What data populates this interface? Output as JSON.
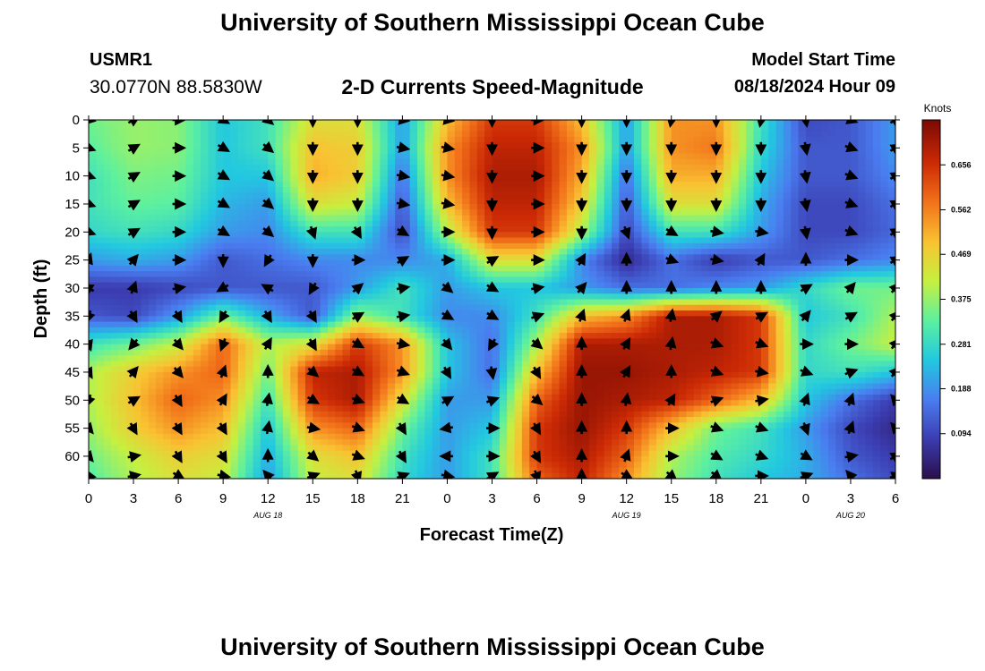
{
  "page": {
    "title_top": "University of Southern Mississippi Ocean Cube",
    "title_bottom": "University of Southern Mississippi Ocean Cube",
    "station_id": "USMR1",
    "coordinates": "30.0770N  88.5830W",
    "subtitle": "2-D Currents Speed-Magnitude",
    "model_start_label": "Model Start Time",
    "model_start_value": "08/18/2024 Hour 09"
  },
  "colors": {
    "ramp": [
      "#2a0f4a",
      "#3b3cb0",
      "#4a7df0",
      "#22c8e0",
      "#5cf0a0",
      "#c6f040",
      "#f9c232",
      "#f2721a",
      "#cc2a05",
      "#7a0a04"
    ],
    "arrow": "#000000"
  },
  "chart_data": {
    "type": "heatmap",
    "title": "2-D Currents Speed-Magnitude",
    "xlabel": "Forecast Time(Z)",
    "ylabel": "Depth (ft)",
    "x_range": [
      0,
      54
    ],
    "x_step_hours": 3,
    "x_tick_labels": [
      "0",
      "3",
      "6",
      "9",
      "12",
      "15",
      "18",
      "21",
      "0",
      "3",
      "6",
      "9",
      "12",
      "15",
      "18",
      "21",
      "0",
      "3",
      "6"
    ],
    "date_labels": [
      {
        "text": "AUG 18",
        "hour": 12
      },
      {
        "text": "AUG 19",
        "hour": 36
      },
      {
        "text": "AUG 20",
        "hour": 51
      }
    ],
    "y_range": [
      0,
      64
    ],
    "y_ticks": [
      0,
      5,
      10,
      15,
      20,
      25,
      30,
      35,
      40,
      45,
      50,
      55,
      60
    ],
    "y_tick_labels": [
      "0",
      "5",
      "10",
      "15",
      "20",
      "25",
      "30",
      "35",
      "40",
      "45",
      "50",
      "55",
      "60"
    ],
    "colorbar": {
      "label": "Knots",
      "range": [
        0.0,
        0.75
      ],
      "ticks": [
        0.656,
        0.562,
        0.469,
        0.375,
        0.281,
        0.188,
        0.094
      ],
      "tick_labels": [
        "0.656",
        "0.562",
        "0.469",
        "0.375",
        "0.281",
        "0.188",
        "0.094"
      ]
    },
    "grid": false,
    "depths": [
      0,
      5,
      10,
      15,
      20,
      25,
      30,
      35,
      40,
      45,
      50,
      55,
      60,
      64
    ],
    "hours": [
      0,
      3,
      6,
      9,
      12,
      15,
      18,
      21,
      24,
      27,
      30,
      33,
      36,
      39,
      42,
      45,
      48,
      51,
      54
    ],
    "speed_knots": [
      [
        0.35,
        0.38,
        0.37,
        0.25,
        0.3,
        0.45,
        0.45,
        0.2,
        0.5,
        0.65,
        0.65,
        0.5,
        0.2,
        0.55,
        0.55,
        0.3,
        0.1,
        0.12,
        0.2
      ],
      [
        0.33,
        0.38,
        0.37,
        0.25,
        0.3,
        0.5,
        0.48,
        0.2,
        0.55,
        0.68,
        0.68,
        0.55,
        0.2,
        0.55,
        0.58,
        0.28,
        0.12,
        0.12,
        0.2
      ],
      [
        0.3,
        0.36,
        0.35,
        0.25,
        0.25,
        0.52,
        0.48,
        0.15,
        0.55,
        0.7,
        0.7,
        0.52,
        0.15,
        0.52,
        0.52,
        0.25,
        0.12,
        0.12,
        0.18
      ],
      [
        0.3,
        0.34,
        0.33,
        0.23,
        0.2,
        0.45,
        0.42,
        0.12,
        0.5,
        0.68,
        0.68,
        0.48,
        0.12,
        0.45,
        0.45,
        0.22,
        0.1,
        0.1,
        0.15
      ],
      [
        0.28,
        0.3,
        0.28,
        0.2,
        0.18,
        0.3,
        0.3,
        0.1,
        0.4,
        0.65,
        0.65,
        0.4,
        0.1,
        0.3,
        0.3,
        0.2,
        0.1,
        0.1,
        0.14
      ],
      [
        0.2,
        0.22,
        0.2,
        0.12,
        0.15,
        0.18,
        0.18,
        0.18,
        0.22,
        0.45,
        0.45,
        0.18,
        0.05,
        0.15,
        0.08,
        0.12,
        0.12,
        0.15,
        0.18
      ],
      [
        0.08,
        0.08,
        0.1,
        0.12,
        0.12,
        0.12,
        0.2,
        0.3,
        0.2,
        0.25,
        0.25,
        0.2,
        0.15,
        0.15,
        0.18,
        0.2,
        0.28,
        0.35,
        0.35
      ],
      [
        0.12,
        0.1,
        0.2,
        0.35,
        0.22,
        0.12,
        0.38,
        0.3,
        0.18,
        0.18,
        0.3,
        0.5,
        0.55,
        0.7,
        0.7,
        0.65,
        0.25,
        0.3,
        0.4
      ],
      [
        0.3,
        0.35,
        0.42,
        0.6,
        0.4,
        0.45,
        0.65,
        0.55,
        0.25,
        0.15,
        0.4,
        0.7,
        0.7,
        0.7,
        0.7,
        0.65,
        0.28,
        0.35,
        0.42
      ],
      [
        0.4,
        0.48,
        0.55,
        0.6,
        0.35,
        0.68,
        0.7,
        0.55,
        0.25,
        0.15,
        0.5,
        0.72,
        0.72,
        0.7,
        0.68,
        0.65,
        0.28,
        0.3,
        0.25
      ],
      [
        0.4,
        0.5,
        0.6,
        0.55,
        0.3,
        0.65,
        0.7,
        0.45,
        0.2,
        0.2,
        0.6,
        0.72,
        0.7,
        0.68,
        0.6,
        0.5,
        0.25,
        0.15,
        0.08
      ],
      [
        0.38,
        0.48,
        0.55,
        0.5,
        0.25,
        0.55,
        0.6,
        0.35,
        0.2,
        0.25,
        0.65,
        0.72,
        0.65,
        0.5,
        0.35,
        0.3,
        0.2,
        0.1,
        0.05
      ],
      [
        0.35,
        0.42,
        0.48,
        0.45,
        0.22,
        0.45,
        0.5,
        0.3,
        0.2,
        0.3,
        0.65,
        0.7,
        0.6,
        0.4,
        0.32,
        0.28,
        0.22,
        0.12,
        0.08
      ],
      [
        0.32,
        0.4,
        0.45,
        0.42,
        0.2,
        0.42,
        0.45,
        0.28,
        0.2,
        0.3,
        0.6,
        0.68,
        0.55,
        0.38,
        0.3,
        0.25,
        0.22,
        0.15,
        0.1
      ]
    ],
    "arrow_directions_deg": [
      [
        100,
        60,
        90,
        120,
        130,
        180,
        180,
        100,
        100,
        180,
        90,
        180,
        180,
        190,
        180,
        190,
        170,
        110,
        60
      ],
      [
        110,
        60,
        90,
        120,
        130,
        180,
        180,
        100,
        100,
        180,
        90,
        180,
        180,
        180,
        180,
        180,
        170,
        110,
        60
      ],
      [
        110,
        60,
        90,
        120,
        130,
        180,
        180,
        100,
        100,
        180,
        90,
        180,
        180,
        180,
        180,
        180,
        170,
        110,
        60
      ],
      [
        110,
        60,
        90,
        120,
        130,
        180,
        180,
        100,
        100,
        180,
        90,
        180,
        180,
        180,
        180,
        180,
        170,
        110,
        60
      ],
      [
        110,
        60,
        90,
        120,
        130,
        160,
        150,
        120,
        90,
        180,
        90,
        180,
        160,
        120,
        100,
        100,
        170,
        110,
        60
      ],
      [
        20,
        40,
        90,
        180,
        210,
        180,
        90,
        60,
        90,
        60,
        90,
        30,
        0,
        110,
        100,
        30,
        0,
        90,
        60
      ],
      [
        300,
        20,
        80,
        240,
        300,
        210,
        50,
        80,
        130,
        120,
        80,
        40,
        0,
        0,
        0,
        0,
        60,
        40,
        40
      ],
      [
        200,
        150,
        150,
        210,
        150,
        150,
        60,
        80,
        120,
        120,
        70,
        20,
        20,
        10,
        50,
        60,
        40,
        60,
        40
      ],
      [
        160,
        220,
        140,
        200,
        30,
        150,
        120,
        100,
        140,
        210,
        130,
        0,
        30,
        10,
        110,
        110,
        90,
        90,
        40
      ],
      [
        150,
        40,
        140,
        20,
        0,
        130,
        120,
        110,
        150,
        170,
        150,
        0,
        30,
        0,
        110,
        100,
        110,
        70,
        40
      ],
      [
        200,
        60,
        150,
        30,
        10,
        120,
        110,
        120,
        60,
        70,
        130,
        0,
        10,
        30,
        70,
        80,
        20,
        20,
        320
      ],
      [
        140,
        150,
        150,
        150,
        10,
        100,
        110,
        150,
        260,
        90,
        150,
        0,
        0,
        90,
        110,
        110,
        160,
        20,
        320
      ],
      [
        140,
        80,
        150,
        150,
        0,
        130,
        110,
        150,
        270,
        90,
        150,
        0,
        20,
        90,
        120,
        110,
        120,
        80,
        60
      ],
      [
        100,
        80,
        120,
        100,
        320,
        70,
        160,
        70,
        100,
        60,
        160,
        0,
        120,
        130,
        130,
        90,
        70,
        320,
        70
      ]
    ]
  }
}
